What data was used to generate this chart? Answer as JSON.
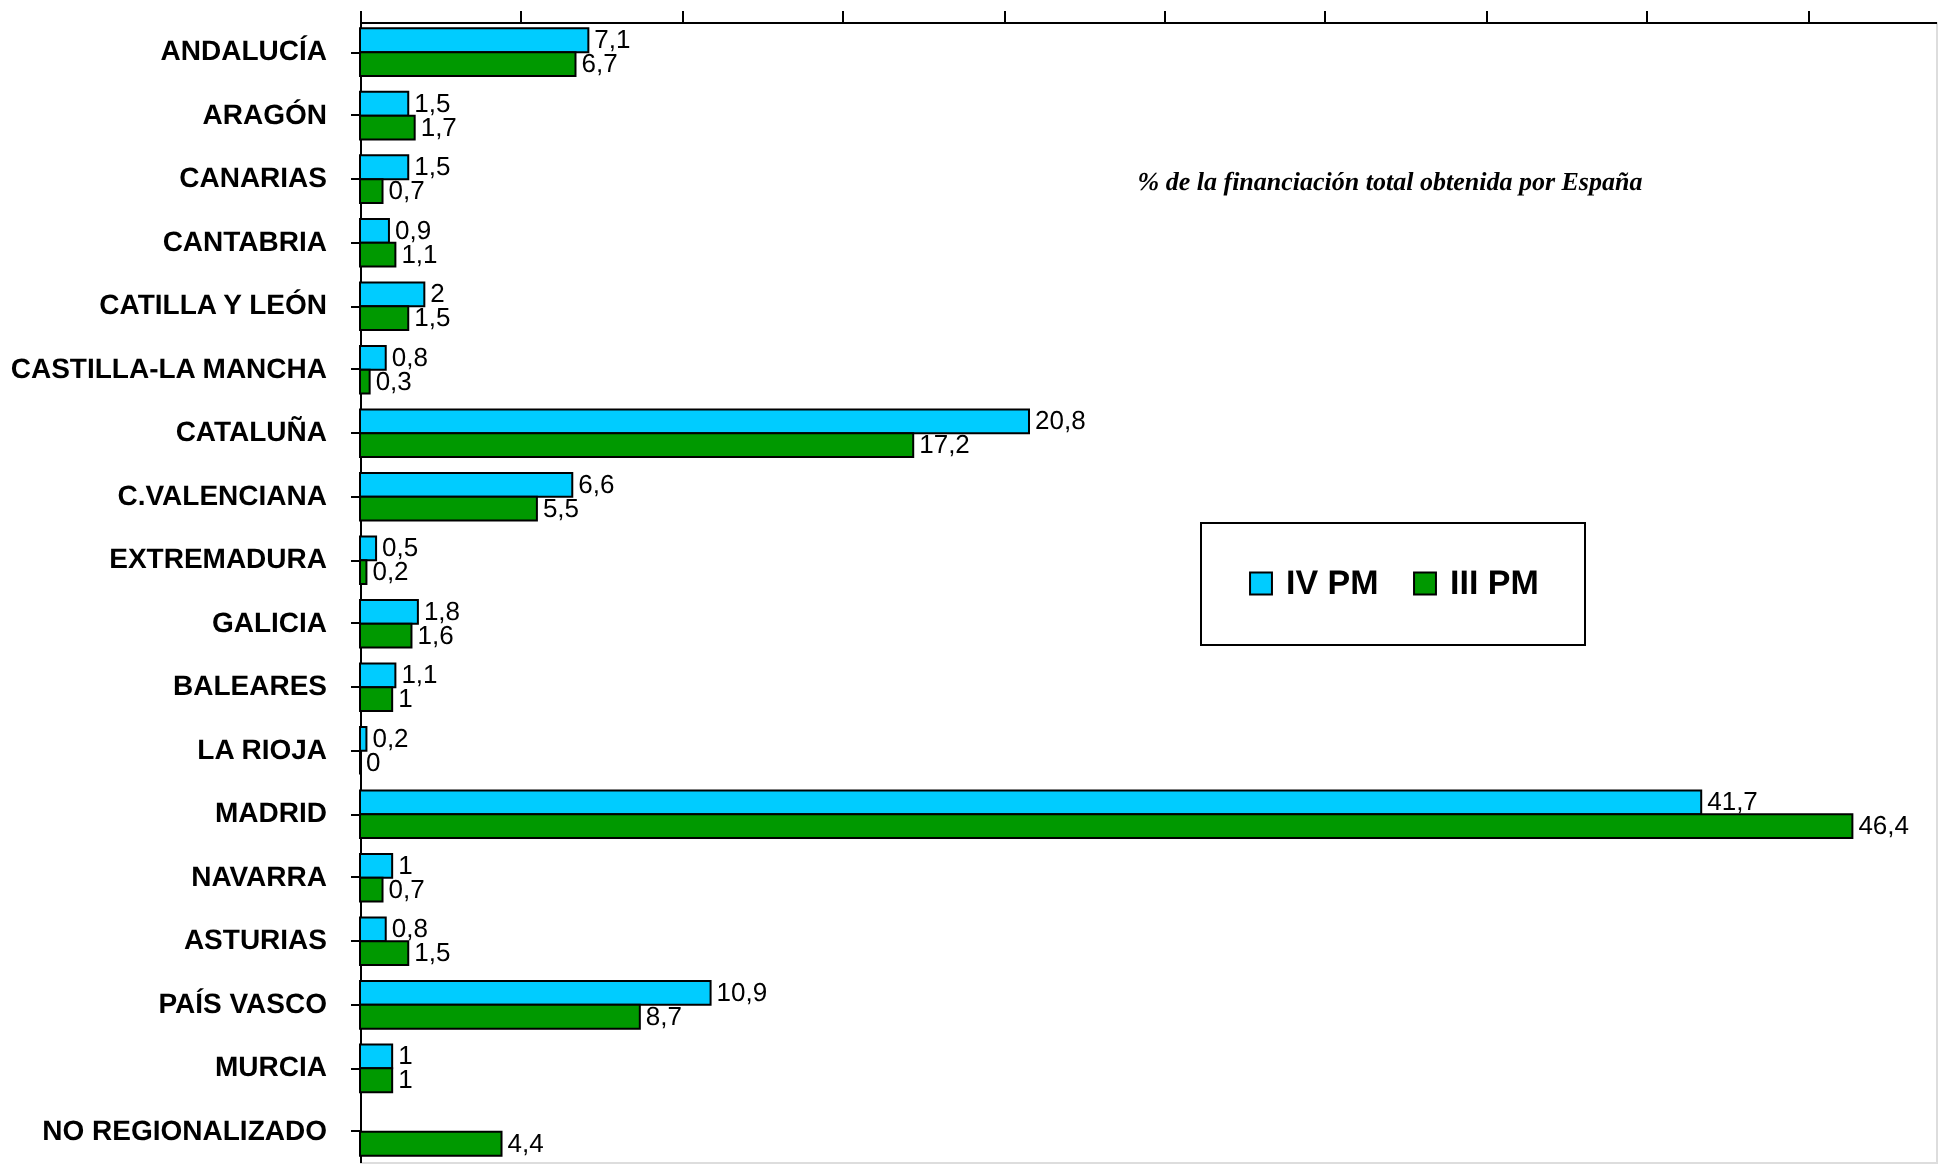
{
  "chart_data": {
    "type": "bar",
    "orientation": "horizontal",
    "categories": [
      "ANDALUCÍA",
      "ARAGÓN",
      "CANARIAS",
      "CANTABRIA",
      "CATILLA Y LEÓN",
      "CASTILLA-LA MANCHA",
      "CATALUÑA",
      "C.VALENCIANA",
      "EXTREMADURA",
      "GALICIA",
      "BALEARES",
      "LA RIOJA",
      "MADRID",
      "NAVARRA",
      "ASTURIAS",
      "PAÍS VASCO",
      "MURCIA",
      "NO REGIONALIZADO"
    ],
    "series": [
      {
        "name": "IV PM",
        "color": "#00ccff",
        "values": [
          7.1,
          1.5,
          1.5,
          0.9,
          2,
          0.8,
          20.8,
          6.6,
          0.5,
          1.8,
          1.1,
          0.2,
          41.7,
          1,
          0.8,
          10.9,
          1,
          null
        ],
        "value_labels": [
          "7,1",
          "1,5",
          "1,5",
          "0,9",
          "2",
          "0,8",
          "20,8",
          "6,6",
          "0,5",
          "1,8",
          "1,1",
          "0,2",
          "41,7",
          "1",
          "0,8",
          "10,9",
          "1",
          null
        ]
      },
      {
        "name": "III PM",
        "color": "#009900",
        "values": [
          6.7,
          1.7,
          0.7,
          1.1,
          1.5,
          0.3,
          17.2,
          5.5,
          0.2,
          1.6,
          1,
          0,
          46.4,
          0.7,
          1.5,
          8.7,
          1,
          4.4
        ],
        "value_labels": [
          "6,7",
          "1,7",
          "0,7",
          "1,1",
          "1,5",
          "0,3",
          "17,2",
          "5,5",
          "0,2",
          "1,6",
          "1",
          "0",
          "46,4",
          "0,7",
          "1,5",
          "8,7",
          "1",
          "4,4"
        ]
      }
    ],
    "xlim": [
      0,
      49
    ],
    "xticks": [
      {
        "value": 0,
        "label": null
      },
      {
        "value": 5,
        "label": null
      },
      {
        "value": 10,
        "label": null
      },
      {
        "value": 15,
        "label": null
      },
      {
        "value": 20,
        "label": null
      },
      {
        "value": 25,
        "label": null
      },
      {
        "value": 30,
        "label": null
      },
      {
        "value": 35,
        "label": null
      },
      {
        "value": 40,
        "label": null
      },
      {
        "value": 45,
        "label": null
      }
    ],
    "tick_labels": "y",
    "grid": false,
    "legend": "right",
    "annotations": [
      "% de la financiación total obtenida por España"
    ]
  }
}
